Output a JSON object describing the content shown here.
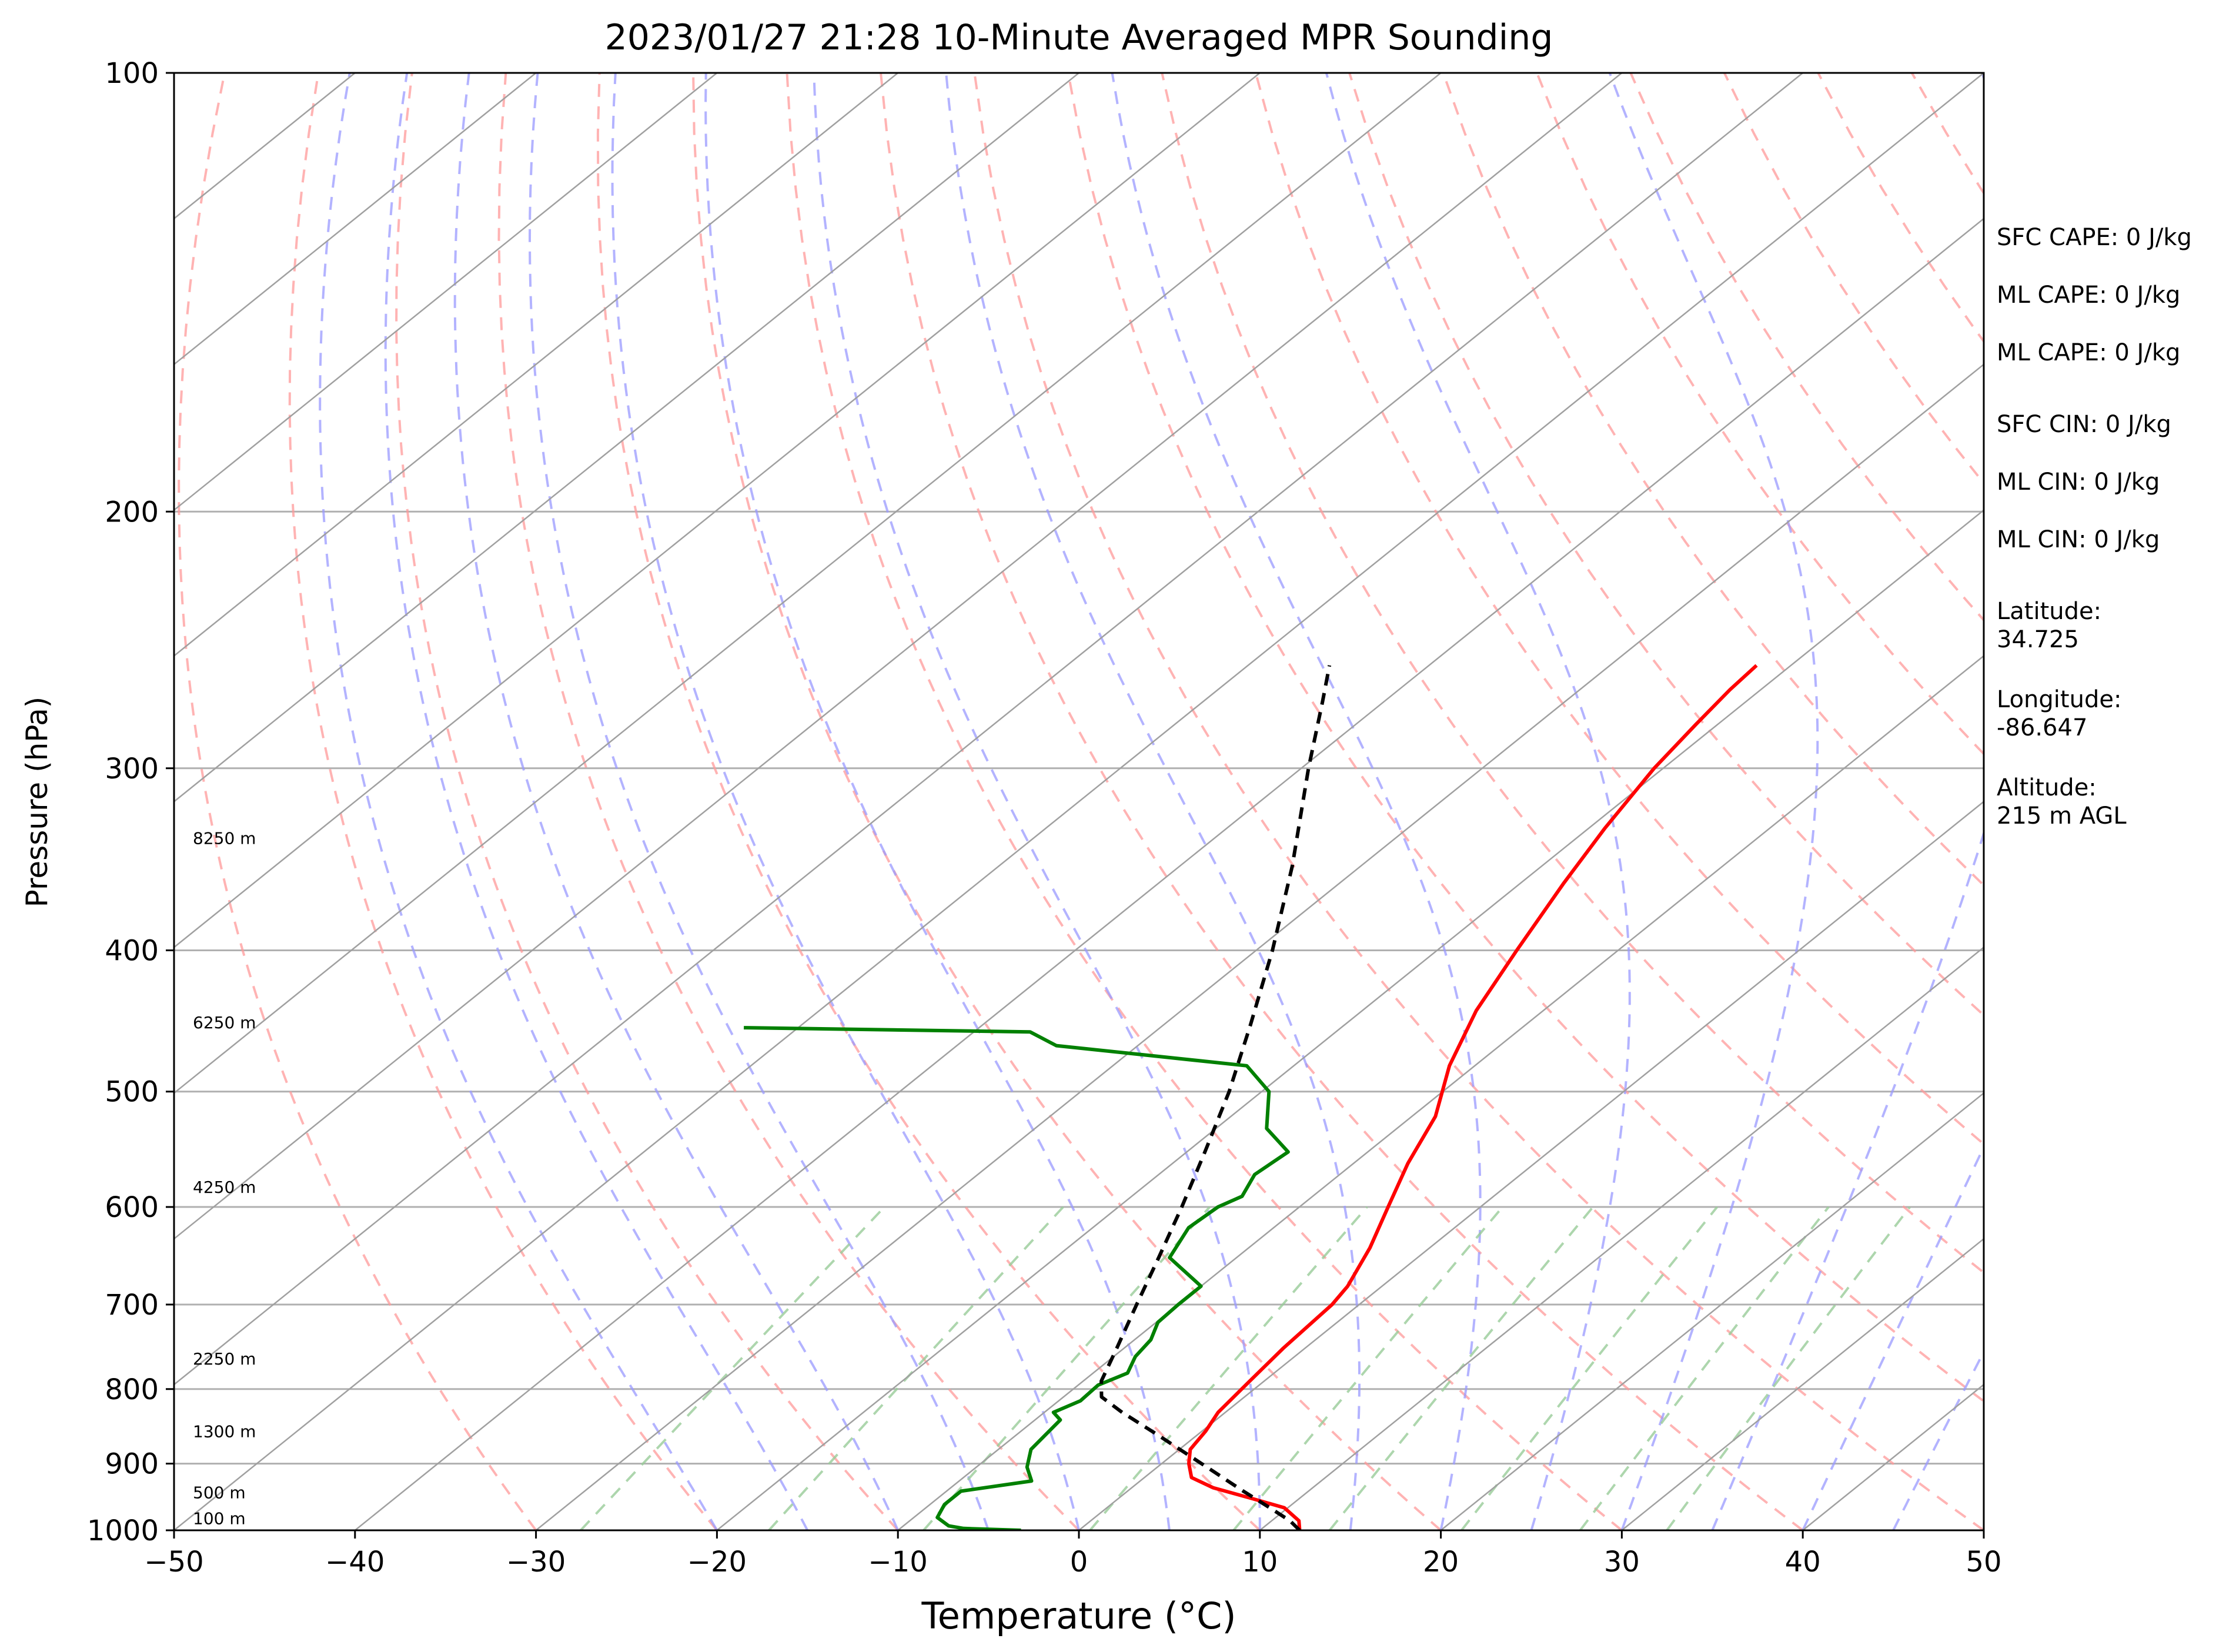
{
  "chart_data": {
    "type": "line",
    "title": "2023/01/27 21:28 10-Minute Averaged MPR Sounding",
    "xlabel": "Temperature (°C)",
    "ylabel": "Pressure (hPa)",
    "xlim": [
      -50,
      50
    ],
    "ylim": [
      1000,
      100
    ],
    "y_scale": "log",
    "x_ticks": [
      -50,
      -40,
      -30,
      -20,
      -10,
      0,
      10,
      20,
      30,
      40,
      50
    ],
    "x_tick_labels": [
      "−50",
      "−40",
      "−30",
      "−20",
      "−10",
      "0",
      "10",
      "20",
      "30",
      "40",
      "50"
    ],
    "y_ticks": [
      100,
      200,
      300,
      400,
      500,
      600,
      700,
      800,
      900,
      1000
    ],
    "y_tick_labels": [
      "100",
      "200",
      "300",
      "400",
      "500",
      "600",
      "700",
      "800",
      "900",
      "1000"
    ],
    "grid": true,
    "colors": {
      "temperature": "#ff0000",
      "dewpoint": "#008000",
      "parcel": "#000000",
      "isotherms": "#a0a0a0",
      "dry_adiabats": "#ff9999",
      "moist_adiabats": "#9999ff",
      "mixing_ratio": "#99cc99"
    },
    "height_labels": [
      {
        "text": "100 m",
        "p": 996
      },
      {
        "text": "500 m",
        "p": 956
      },
      {
        "text": "1300 m",
        "p": 868
      },
      {
        "text": "2250 m",
        "p": 774
      },
      {
        "text": "4250 m",
        "p": 590
      },
      {
        "text": "6250 m",
        "p": 455
      },
      {
        "text": "8250 m",
        "p": 340
      }
    ],
    "series": [
      {
        "key": "temperature",
        "points": [
          [
            1000,
            12.2
          ],
          [
            985,
            11.5
          ],
          [
            965,
            9.8
          ],
          [
            950,
            7.2
          ],
          [
            935,
            4.5
          ],
          [
            920,
            2.6
          ],
          [
            900,
            1.5
          ],
          [
            880,
            0.6
          ],
          [
            855,
            0.2
          ],
          [
            830,
            -0.4
          ],
          [
            790,
            -0.8
          ],
          [
            750,
            -1.2
          ],
          [
            700,
            -1.5
          ],
          [
            680,
            -1.9
          ],
          [
            640,
            -3.3
          ],
          [
            600,
            -5.1
          ],
          [
            560,
            -7.0
          ],
          [
            520,
            -8.7
          ],
          [
            480,
            -11.4
          ],
          [
            440,
            -13.7
          ],
          [
            400,
            -15.6
          ],
          [
            360,
            -17.6
          ],
          [
            330,
            -19.1
          ],
          [
            300,
            -20.5
          ],
          [
            280,
            -21.2
          ],
          [
            265,
            -21.7
          ],
          [
            255,
            -21.9
          ]
        ]
      },
      {
        "key": "dewpoint",
        "points": [
          [
            1000,
            -3.2
          ],
          [
            997,
            -6.5
          ],
          [
            993,
            -7.5
          ],
          [
            980,
            -8.7
          ],
          [
            960,
            -9.2
          ],
          [
            940,
            -9.2
          ],
          [
            925,
            -6.0
          ],
          [
            905,
            -7.2
          ],
          [
            880,
            -8.2
          ],
          [
            860,
            -8.4
          ],
          [
            840,
            -8.6
          ],
          [
            830,
            -9.5
          ],
          [
            815,
            -8.8
          ],
          [
            795,
            -8.9
          ],
          [
            780,
            -8.1
          ],
          [
            760,
            -8.8
          ],
          [
            740,
            -9.1
          ],
          [
            720,
            -9.9
          ],
          [
            700,
            -10.0
          ],
          [
            680,
            -10.0
          ],
          [
            650,
            -13.7
          ],
          [
            620,
            -14.7
          ],
          [
            600,
            -14.5
          ],
          [
            590,
            -13.9
          ],
          [
            570,
            -14.7
          ],
          [
            550,
            -14.4
          ],
          [
            530,
            -17.2
          ],
          [
            500,
            -19.6
          ],
          [
            480,
            -22.6
          ],
          [
            465,
            -34.5
          ],
          [
            455,
            -36.9
          ],
          [
            452,
            -53.0
          ]
        ]
      },
      {
        "key": "parcel",
        "points": [
          [
            1000,
            12.2
          ],
          [
            985,
            11.0
          ],
          [
            965,
            9.0
          ],
          [
            940,
            6.4
          ],
          [
            900,
            2.2
          ],
          [
            860,
            -2.2
          ],
          [
            830,
            -5.7
          ],
          [
            810,
            -7.9
          ],
          [
            790,
            -9.0
          ],
          [
            750,
            -10.4
          ],
          [
            700,
            -12.3
          ],
          [
            650,
            -14.3
          ],
          [
            600,
            -16.5
          ],
          [
            550,
            -19.0
          ],
          [
            500,
            -21.8
          ],
          [
            450,
            -25.2
          ],
          [
            400,
            -29.1
          ],
          [
            350,
            -33.8
          ],
          [
            300,
            -39.6
          ],
          [
            270,
            -43.4
          ],
          [
            255,
            -45.5
          ]
        ]
      }
    ]
  },
  "side_info": [
    "SFC CAPE: 0 J/kg",
    "ML CAPE: 0 J/kg",
    "ML CAPE: 0 J/kg",
    "SFC CIN: 0 J/kg",
    "ML CIN: 0 J/kg",
    "ML CIN: 0 J/kg",
    "Latitude:\n34.725",
    "Longitude:\n-86.647",
    "Altitude:\n215 m AGL"
  ]
}
